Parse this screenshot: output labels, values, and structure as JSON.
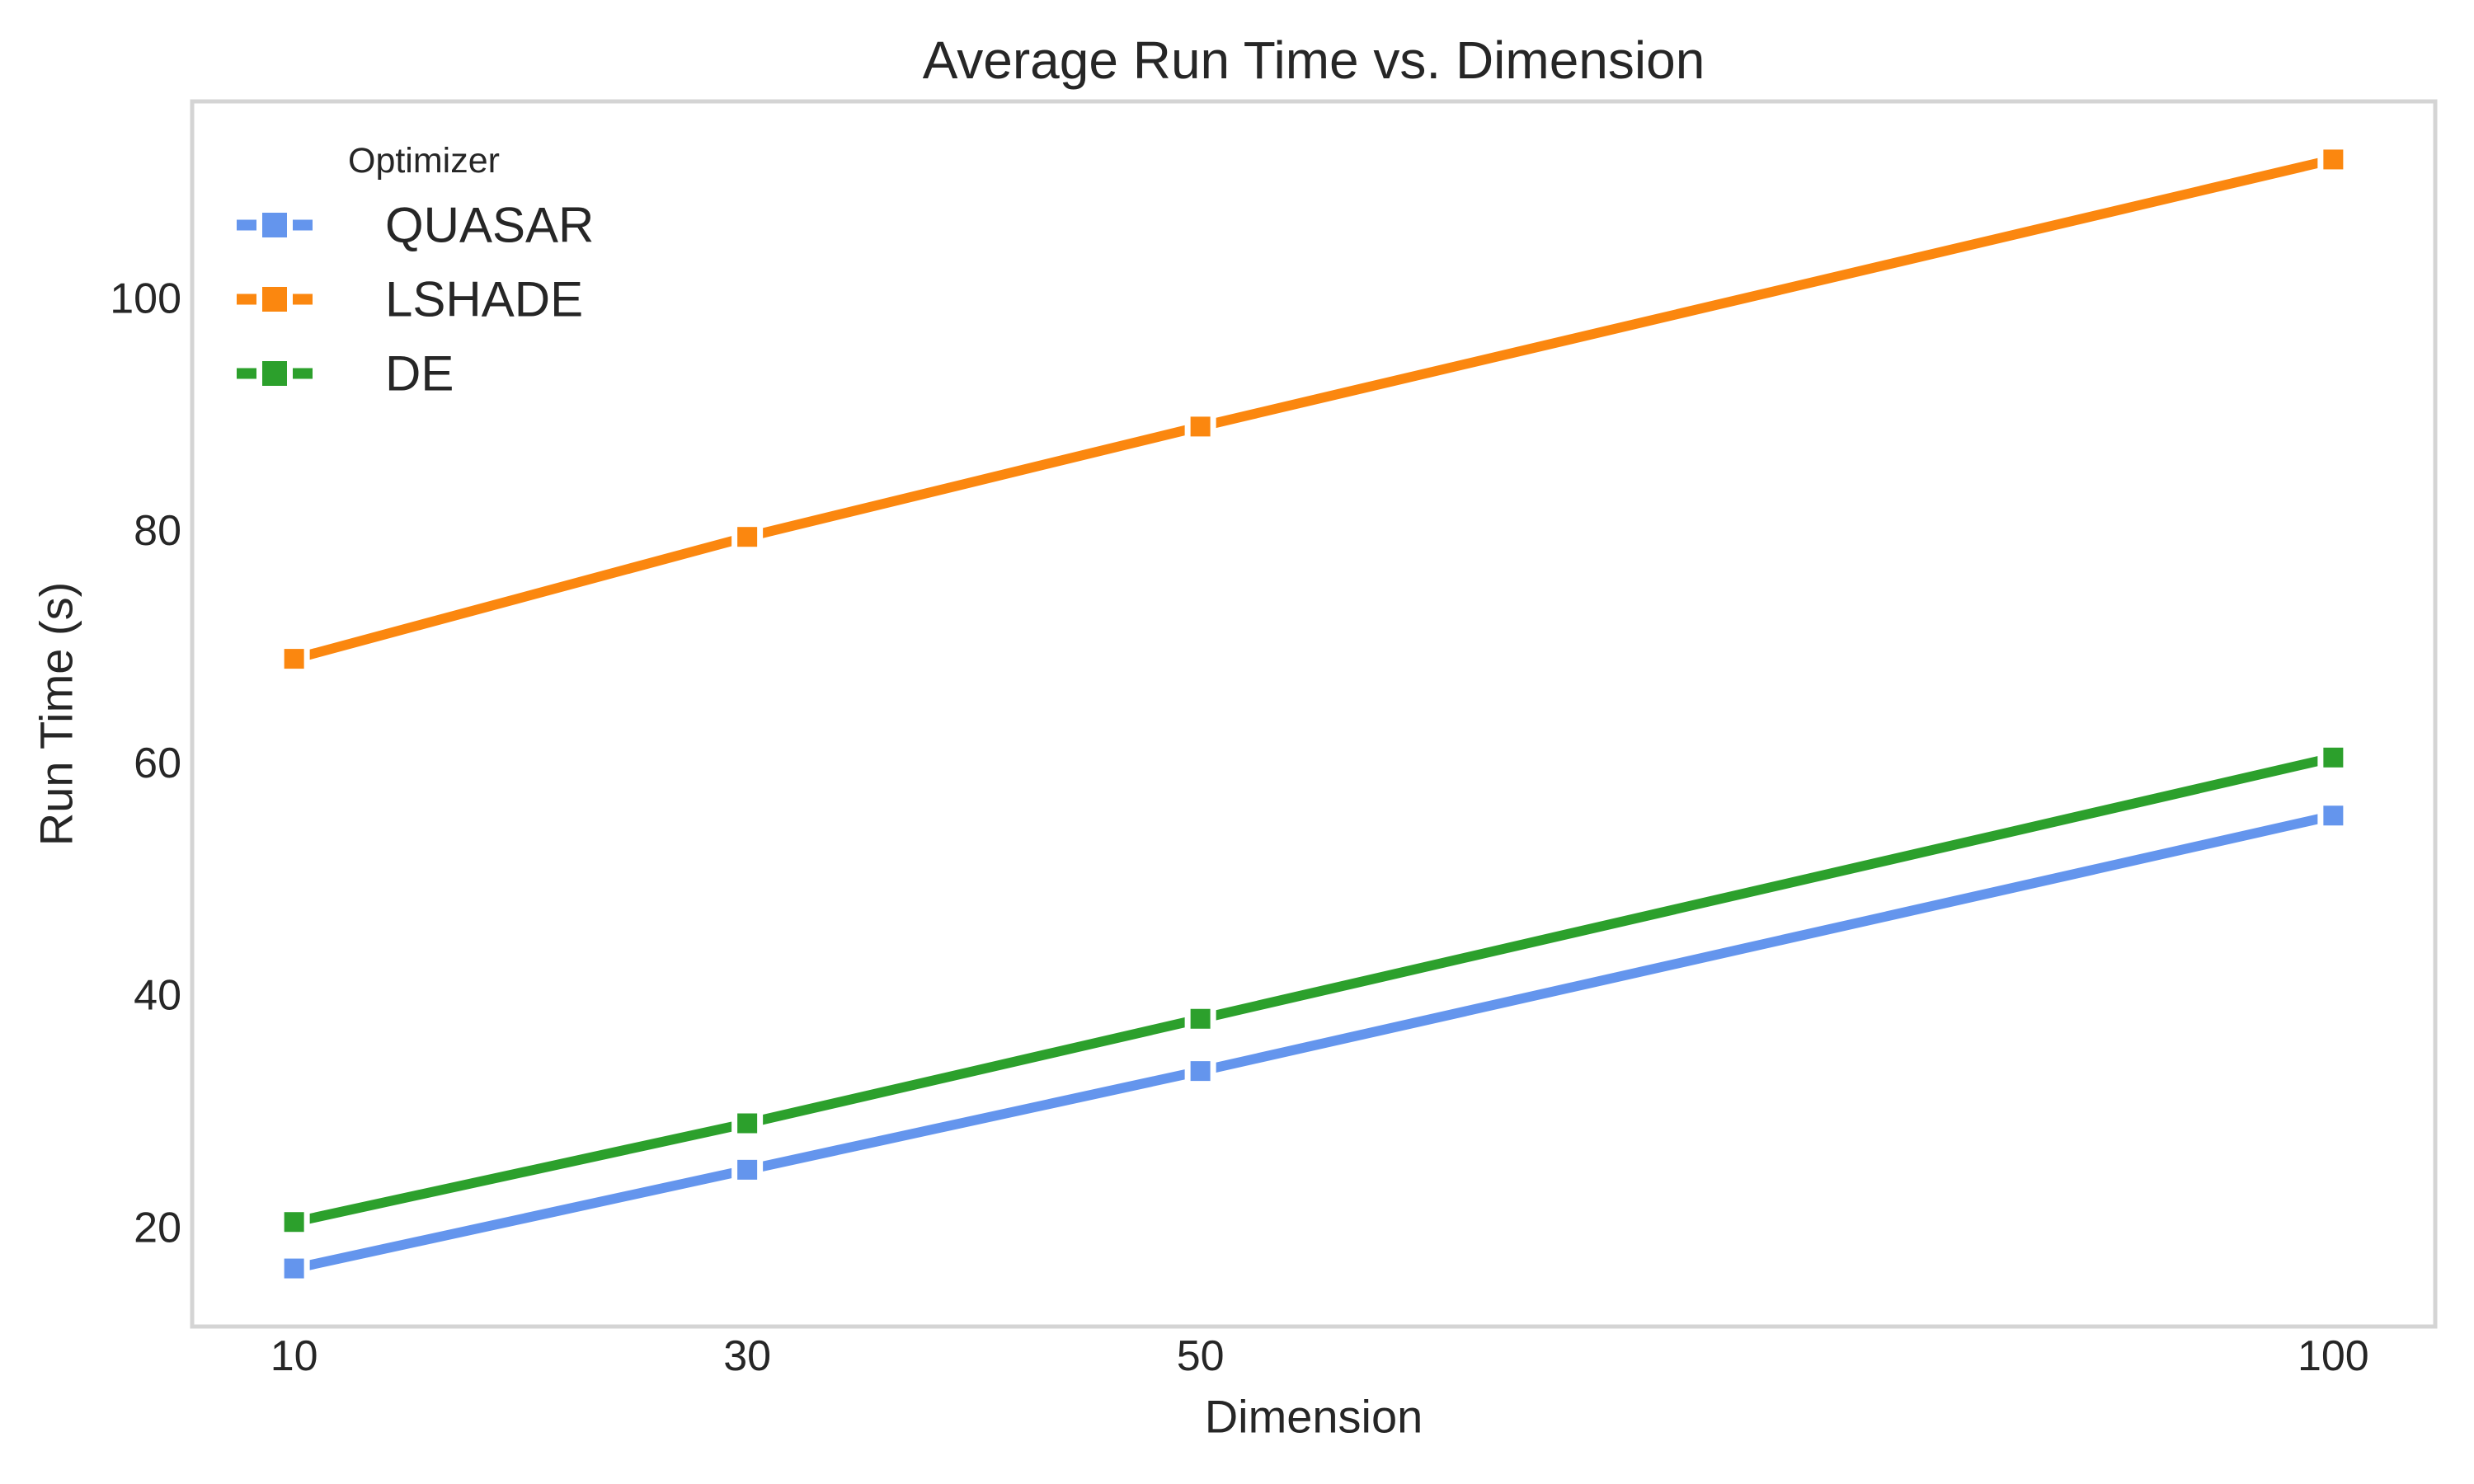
{
  "figure": {
    "background_color": "#FFFFFF",
    "text_color": "#262626",
    "axis_frame_color": "#D4D4D4"
  },
  "chart_data": {
    "type": "line",
    "title": "Average Run Time vs. Dimension",
    "xlabel": "Dimension",
    "ylabel": "Run Time (s)",
    "x": [
      10,
      30,
      50,
      100
    ],
    "x_tick_labels": [
      "10",
      "30",
      "50",
      "100"
    ],
    "y_ticks": [
      20,
      40,
      60,
      80,
      100
    ],
    "y_tick_labels": [
      "20",
      "40",
      "60",
      "80",
      "100"
    ],
    "xlim": [
      5.5,
      104.5
    ],
    "ylim": [
      11.5,
      117
    ],
    "grid": false,
    "marker": "square",
    "legend": {
      "title": "Optimizer",
      "position": "upper-left",
      "entries": [
        "QUASAR",
        "LSHADE",
        "DE"
      ]
    },
    "series": [
      {
        "name": "QUASAR",
        "color": "#6495ED",
        "values": [
          16.5,
          25,
          33.5,
          55.5
        ]
      },
      {
        "name": "LSHADE",
        "color": "#FB870F",
        "values": [
          69,
          79.5,
          89,
          112
        ]
      },
      {
        "name": "DE",
        "color": "#2CA02C",
        "values": [
          20.5,
          29,
          38,
          60.5
        ]
      }
    ]
  }
}
